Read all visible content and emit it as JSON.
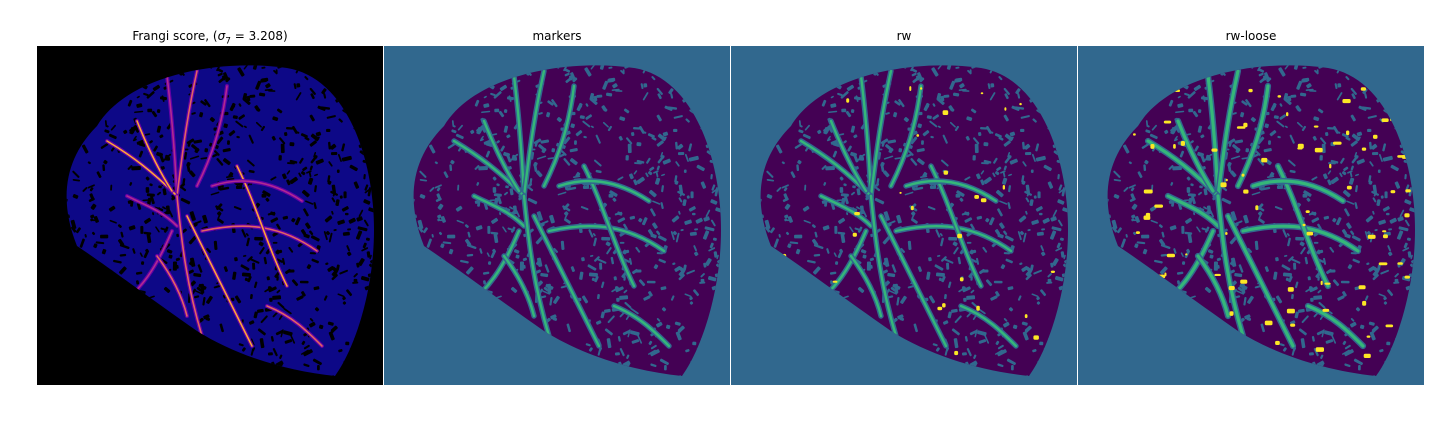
{
  "figure": {
    "panels": [
      {
        "title_prefix": "Frangi score, (",
        "title_symbol": "σ",
        "title_subscript": "7",
        "title_suffix": " = 3.208)",
        "colormap": "plasma",
        "background_color": "#000000",
        "tissue_color": "#0d0887",
        "vessel_colors": [
          "#6a00a8",
          "#b12a90",
          "#e16462",
          "#fca636"
        ]
      },
      {
        "title": "markers",
        "colormap": "viridis",
        "background_color": "#31688e",
        "tissue_color": "#440154",
        "vessel_color": "#35b779"
      },
      {
        "title": "rw",
        "colormap": "viridis",
        "background_color": "#31688e",
        "tissue_color": "#440154",
        "vessel_colors": [
          "#35b779",
          "#fde725"
        ]
      },
      {
        "title": "rw-loose",
        "colormap": "viridis",
        "background_color": "#31688e",
        "tissue_color": "#440154",
        "vessel_colors": [
          "#35b779",
          "#fde725"
        ]
      }
    ]
  }
}
